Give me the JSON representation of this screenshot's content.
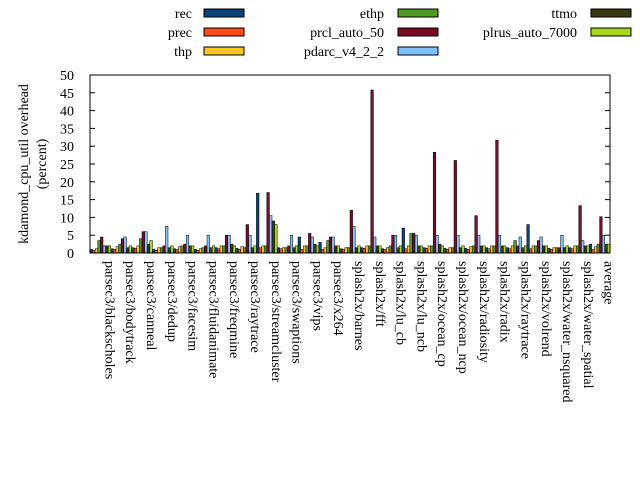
{
  "chart_data": {
    "type": "bar",
    "ylabel": "kdamond_cpu_util overhead",
    "ylabel_unit": "(percent)",
    "ylim": [
      0,
      50
    ],
    "yticks": [
      0,
      5,
      10,
      15,
      20,
      25,
      30,
      35,
      40,
      45,
      50
    ],
    "legend_position": "top",
    "categories": [
      "parsec3/blackscholes",
      "parsec3/bodytrack",
      "parsec3/canneal",
      "parsec3/dedup",
      "parsec3/facesim",
      "parsec3/fluidanimate",
      "parsec3/freqmine",
      "parsec3/raytrace",
      "parsec3/streamcluster",
      "parsec3/swaptions",
      "parsec3/vips",
      "parsec3/x264",
      "splash2x/barnes",
      "splash2x/fft",
      "splash2x/lu_cb",
      "splash2x/lu_ncb",
      "splash2x/ocean_cp",
      "splash2x/ocean_ncp",
      "splash2x/radiosity",
      "splash2x/radix",
      "splash2x/raytrace",
      "splash2x/volrend",
      "splash2x/water_nsquared",
      "splash2x/water_spatial",
      "average"
    ],
    "series": [
      {
        "name": "rec",
        "color": "#0b4279",
        "values": [
          1.0,
          1.2,
          1.5,
          1.0,
          1.2,
          1.0,
          1.5,
          1.3,
          16.8,
          1.5,
          4.5,
          3.0,
          1.2,
          1.5,
          1.2,
          7.0,
          1.5,
          1.3,
          1.3,
          1.5,
          1.5,
          8.0,
          1.3,
          1.5,
          2.5
        ]
      },
      {
        "name": "prec",
        "color": "#ff4a1c",
        "values": [
          0.8,
          1.0,
          1.3,
          0.8,
          1.0,
          0.8,
          1.2,
          1.0,
          1.5,
          1.2,
          1.0,
          1.0,
          1.0,
          1.3,
          1.0,
          1.2,
          1.3,
          1.0,
          1.0,
          1.2,
          1.2,
          1.2,
          1.0,
          1.2,
          1.0
        ]
      },
      {
        "name": "thp",
        "color": "#f6c425",
        "values": [
          1.2,
          1.8,
          2.0,
          1.5,
          1.8,
          1.2,
          2.0,
          1.8,
          2.0,
          1.5,
          2.0,
          1.5,
          1.5,
          2.0,
          1.5,
          2.0,
          2.0,
          1.5,
          1.8,
          2.0,
          2.0,
          2.0,
          1.5,
          2.0,
          1.8
        ]
      },
      {
        "name": "ethp",
        "color": "#4d9c21",
        "values": [
          3.5,
          2.5,
          4.0,
          1.5,
          2.0,
          1.5,
          2.0,
          1.5,
          2.0,
          1.5,
          2.0,
          3.5,
          1.5,
          2.0,
          2.0,
          5.5,
          2.0,
          1.5,
          2.0,
          2.0,
          3.5,
          2.0,
          1.5,
          2.0,
          2.5
        ]
      },
      {
        "name": "prcl_auto_50",
        "color": "#7a0a27",
        "values": [
          4.5,
          4.0,
          6.0,
          2.0,
          2.5,
          2.0,
          5.0,
          8.0,
          17.0,
          2.0,
          5.5,
          4.5,
          12.0,
          45.8,
          5.0,
          5.5,
          28.3,
          26.0,
          10.5,
          31.7,
          2.0,
          3.5,
          1.5,
          13.3,
          10.2
        ]
      },
      {
        "name": "pdarc_v4_2_2",
        "color": "#7cc2ff",
        "values": [
          2.0,
          4.5,
          6.0,
          7.5,
          5.0,
          5.0,
          5.0,
          5.0,
          10.5,
          5.0,
          4.5,
          4.5,
          7.5,
          4.5,
          5.0,
          5.0,
          5.0,
          5.0,
          5.0,
          5.0,
          4.5,
          4.5,
          5.0,
          3.5,
          5.0
        ]
      },
      {
        "name": "ttmo",
        "color": "#373a12",
        "values": [
          2.0,
          1.5,
          2.5,
          1.5,
          2.0,
          1.5,
          2.5,
          1.5,
          9.0,
          1.5,
          2.5,
          2.0,
          1.5,
          2.0,
          1.5,
          2.0,
          2.5,
          1.5,
          2.0,
          2.0,
          1.5,
          2.0,
          1.5,
          2.0,
          2.5
        ]
      },
      {
        "name": "plrus_auto_7000",
        "color": "#a7d91a",
        "values": [
          2.0,
          2.0,
          3.5,
          2.0,
          2.0,
          2.0,
          2.0,
          2.0,
          8.0,
          2.0,
          2.0,
          2.0,
          2.0,
          2.0,
          2.0,
          2.0,
          2.0,
          2.0,
          2.0,
          2.0,
          2.0,
          2.0,
          2.0,
          2.0,
          2.5
        ]
      }
    ]
  }
}
